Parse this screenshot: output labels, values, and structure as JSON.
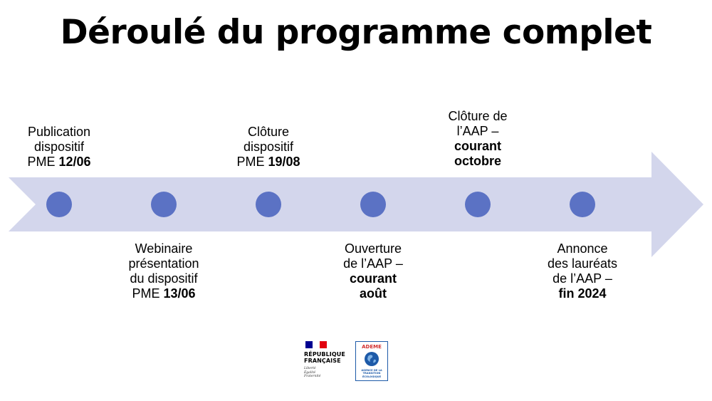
{
  "title": "Déroulé du programme complet",
  "colors": {
    "arrow": "#d3d6ec",
    "dot": "#5b72c4",
    "flag_blue": "#000091",
    "flag_red": "#e1000f",
    "ademe_blue": "#1d5aa8",
    "ademe_red": "#d32f2f"
  },
  "milestones": [
    {
      "position": "above",
      "lines": [
        "Publication",
        "dispositif"
      ],
      "prefix": "PME",
      "bold": "12/06"
    },
    {
      "position": "below",
      "lines": [
        "Webinaire",
        "présentation",
        "du dispositif"
      ],
      "prefix": "PME",
      "bold": "13/06"
    },
    {
      "position": "above",
      "lines": [
        "Clôture",
        "dispositif"
      ],
      "prefix": "PME",
      "bold": "19/08"
    },
    {
      "position": "below",
      "lines": [
        "Ouverture",
        "de l’AAP –"
      ],
      "bold_lines": [
        "courant",
        "août"
      ]
    },
    {
      "position": "above",
      "lines": [
        "Clôture de",
        "l’AAP –"
      ],
      "bold_lines": [
        "courant",
        "octobre"
      ]
    },
    {
      "position": "below",
      "lines": [
        "Annonce",
        "des lauréats",
        "de l’AAP –"
      ],
      "bold_lines": [
        "fin 2024"
      ]
    }
  ],
  "logos": {
    "republique": {
      "line1": "RÉPUBLIQUE",
      "line2": "FRANÇAISE",
      "motto": [
        "Liberté",
        "Égalité",
        "Fraternité"
      ]
    },
    "ademe": {
      "name": "ADEME",
      "sub": [
        "AGENCE DE LA",
        "TRANSITION",
        "ÉCOLOGIQUE"
      ]
    }
  }
}
